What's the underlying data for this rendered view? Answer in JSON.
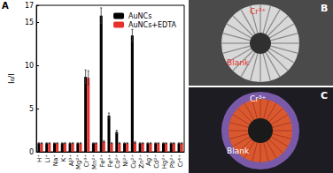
{
  "chart_data": {
    "type": "bar",
    "panel_label": "A",
    "y_label": "I₀/I",
    "categories": [
      "H⁺",
      "Li⁺",
      "Na⁺",
      "K⁺",
      "Al³⁺",
      "Mg²⁺",
      "Cr³⁺",
      "Mn²⁺",
      "Fe²⁺",
      "Fe³⁺",
      "Co²⁺",
      "Ni²⁺",
      "Cu²⁺",
      "Zn²⁺",
      "Ag⁺",
      "Cd²⁺",
      "Hg²⁺",
      "Pb²⁺",
      "Cr⁶⁺"
    ],
    "series": [
      {
        "name": "AuNCs",
        "color": "#000000",
        "values": [
          1,
          1,
          1,
          1,
          1,
          1,
          8.7,
          1,
          15.8,
          4.2,
          2.3,
          1,
          13.5,
          1,
          1,
          1,
          1,
          1,
          1
        ],
        "errors": [
          0.05,
          0.05,
          0.05,
          0.05,
          0.05,
          0.05,
          0.8,
          0.05,
          0.9,
          0.3,
          0.2,
          0.05,
          0.7,
          0.05,
          0.05,
          0.05,
          0.05,
          0.05,
          0.05
        ]
      },
      {
        "name": "AuNCs+EDTA",
        "color": "#e8302a",
        "values": [
          1,
          1,
          1,
          1,
          1,
          1,
          8.6,
          1,
          1.2,
          1,
          1,
          1,
          1.1,
          1,
          1,
          1,
          1,
          1,
          1
        ],
        "errors": [
          0.05,
          0.05,
          0.05,
          0.05,
          0.05,
          0.05,
          0.8,
          0.05,
          0.1,
          0.05,
          0.05,
          0.05,
          0.1,
          0.05,
          0.05,
          0.05,
          0.05,
          0.05,
          0.05
        ]
      }
    ],
    "ylim": [
      0,
      17
    ],
    "yticks": [
      0,
      5,
      10,
      15
    ],
    "grid": false,
    "legend": "top-right"
  },
  "panels": [
    {
      "label": "B",
      "texts": [
        "Cr³⁺",
        "Blank"
      ]
    },
    {
      "label": "C",
      "texts": [
        "Cr³⁺",
        "Blank"
      ]
    }
  ]
}
